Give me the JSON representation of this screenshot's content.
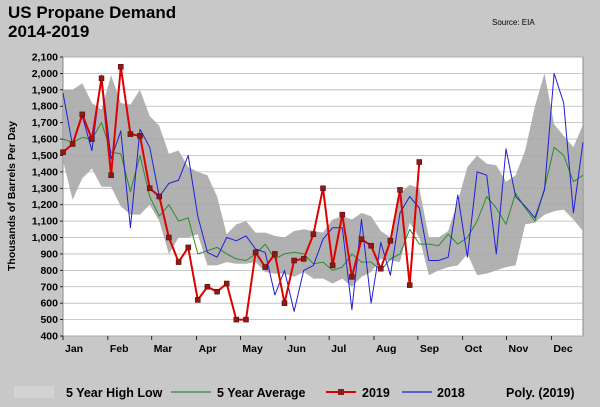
{
  "chart_data": {
    "type": "line",
    "title": "US Propane Demand",
    "subtitle": "2014-2019",
    "source": "Source: EIA",
    "ylabel": "Thousands of Barrels Per Day",
    "ylim": [
      400,
      2100
    ],
    "yticks": [
      400,
      500,
      600,
      700,
      800,
      900,
      1000,
      1100,
      1200,
      1300,
      1400,
      1500,
      1600,
      1700,
      1800,
      1900,
      2000,
      2100
    ],
    "ytick_labels": [
      "400",
      "500",
      "600",
      "700",
      "800",
      "900",
      "1,000",
      "1,100",
      "1,200",
      "1,300",
      "1,400",
      "1,500",
      "1,600",
      "1,700",
      "1,800",
      "1,900",
      "2,000",
      "2,100"
    ],
    "x_unit": "week",
    "xlim": [
      1,
      52
    ],
    "months": [
      {
        "label": "Jan",
        "week": 1
      },
      {
        "label": "Feb",
        "week": 5.4
      },
      {
        "label": "Mar",
        "week": 9.7
      },
      {
        "label": "Apr",
        "week": 14.1
      },
      {
        "label": "May",
        "week": 18.4
      },
      {
        "label": "Jun",
        "week": 22.8
      },
      {
        "label": "Jul",
        "week": 27.1
      },
      {
        "label": "Aug",
        "week": 31.5
      },
      {
        "label": "Sep",
        "week": 35.8
      },
      {
        "label": "Oct",
        "week": 40.2
      },
      {
        "label": "Nov",
        "week": 44.5
      },
      {
        "label": "Dec",
        "week": 48.9
      }
    ],
    "grid": true,
    "legend_position": "bottom",
    "legend": [
      "5 Year High Low",
      "5 Year Average",
      "2019",
      "2018",
      "Poly. (2019)"
    ],
    "colors": {
      "band": "#a9a9a9",
      "average": "#2e8b2e",
      "y2019": "#e00000",
      "y2019_marker": "#8b1a1a",
      "y2018": "#1f1fd6",
      "background": "#c8c8c8",
      "plot": "#ffffff",
      "grid": "#b8b8b8"
    },
    "series": [
      {
        "name": "5 Year High Low",
        "kind": "band",
        "high": [
          1900,
          1900,
          1940,
          1820,
          1780,
          1990,
          1820,
          1810,
          1900,
          1740,
          1680,
          1510,
          1530,
          1430,
          1400,
          1380,
          1250,
          1020,
          1080,
          1100,
          1030,
          1030,
          1010,
          1000,
          1040,
          1050,
          1040,
          1030,
          1110,
          1130,
          1110,
          1150,
          1130,
          1040,
          1000,
          1270,
          1320,
          1300,
          1000,
          1000,
          1040,
          1220,
          1430,
          1500,
          1450,
          1440,
          1340,
          1380,
          1530,
          1800,
          2000,
          1690,
          1620,
          1550,
          1690
        ],
        "low": [
          1470,
          1230,
          1360,
          1420,
          1310,
          1310,
          1190,
          1140,
          1140,
          1200,
          1100,
          900,
          1000,
          1000,
          1020,
          830,
          830,
          850,
          840,
          840,
          850,
          790,
          780,
          780,
          760,
          790,
          750,
          750,
          720,
          750,
          700,
          760,
          790,
          870,
          860,
          850,
          1090,
          1000,
          770,
          800,
          820,
          830,
          900,
          770,
          780,
          800,
          820,
          830,
          1080,
          1090,
          1140,
          1160,
          1170,
          1110,
          1040
        ]
      },
      {
        "name": "5 Year Average",
        "kind": "line",
        "values": [
          1600,
          1580,
          1610,
          1600,
          1700,
          1520,
          1510,
          1280,
          1500,
          1250,
          1130,
          1200,
          1100,
          1120,
          900,
          920,
          940,
          900,
          870,
          860,
          900,
          960,
          870,
          900,
          910,
          900,
          840,
          850,
          800,
          820,
          900,
          850,
          850,
          800,
          870,
          900,
          1050,
          960,
          960,
          950,
          1020,
          960,
          1000,
          1100,
          1250,
          1180,
          1080,
          1270,
          1180,
          1100,
          1300,
          1550,
          1500,
          1340,
          1380
        ]
      },
      {
        "name": "2019",
        "kind": "line_markers",
        "values": [
          1520,
          1570,
          1750,
          1600,
          1970,
          1380,
          2040,
          1630,
          1620,
          1300,
          1250,
          1000,
          850,
          940,
          620,
          700,
          670,
          720,
          500,
          500,
          910,
          820,
          900,
          600,
          860,
          870,
          1020,
          1300,
          830,
          1140,
          760,
          990,
          950,
          810,
          980,
          1290,
          710,
          1460
        ]
      },
      {
        "name": "2018",
        "kind": "line",
        "values": [
          1880,
          1560,
          1740,
          1530,
          1990,
          1480,
          1650,
          1060,
          1660,
          1550,
          1250,
          1330,
          1350,
          1500,
          1130,
          910,
          880,
          1000,
          980,
          1010,
          930,
          910,
          650,
          800,
          550,
          800,
          830,
          990,
          1060,
          1060,
          560,
          1110,
          600,
          970,
          770,
          1150,
          1250,
          1180,
          860,
          860,
          880,
          1260,
          880,
          1400,
          1380,
          900,
          1540,
          1250,
          1190,
          1120,
          1290,
          2000,
          1820,
          1150,
          1580
        ]
      }
    ]
  }
}
